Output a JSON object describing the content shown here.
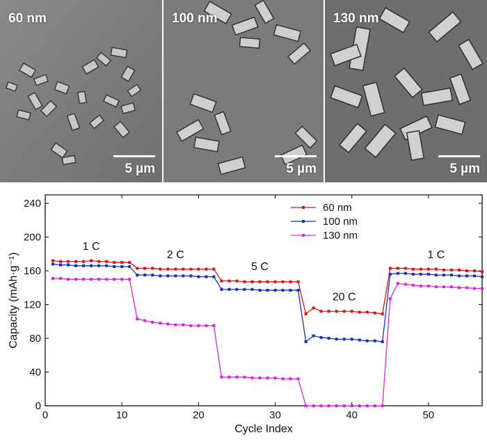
{
  "images": [
    {
      "label": "60 nm",
      "scale": "5 µm"
    },
    {
      "label": "100 nm",
      "scale": "5 µm"
    },
    {
      "label": "130 nm",
      "scale": "5 µm"
    }
  ],
  "chart_data": {
    "type": "line",
    "xlabel": "Cycle Index",
    "ylabel": "Capacity (mAh·g⁻¹)",
    "xlim": [
      0,
      57
    ],
    "ylim": [
      0,
      250
    ],
    "xticks": [
      0,
      10,
      20,
      30,
      40,
      50
    ],
    "yticks": [
      0,
      40,
      80,
      120,
      160,
      200,
      240
    ],
    "grid": false,
    "legend": "top-center",
    "x": [
      1,
      2,
      3,
      4,
      5,
      6,
      7,
      8,
      9,
      10,
      11,
      12,
      13,
      14,
      15,
      16,
      17,
      18,
      19,
      20,
      21,
      22,
      23,
      24,
      25,
      26,
      27,
      28,
      29,
      30,
      31,
      32,
      33,
      34,
      35,
      36,
      37,
      38,
      39,
      40,
      41,
      42,
      43,
      44,
      45,
      46,
      47,
      48,
      49,
      50,
      51,
      52,
      53,
      54,
      55,
      56,
      57
    ],
    "series": [
      {
        "name": "60 nm",
        "color": "#e01010",
        "values": [
          172,
          171,
          171,
          171,
          171,
          172,
          171,
          171,
          170,
          170,
          170,
          163,
          163,
          163,
          162,
          162,
          162,
          162,
          162,
          162,
          162,
          162,
          148,
          148,
          148,
          147,
          147,
          147,
          147,
          147,
          147,
          147,
          147,
          109,
          116,
          112,
          112,
          112,
          112,
          112,
          111,
          111,
          110,
          109,
          163,
          163,
          163,
          162,
          162,
          162,
          162,
          161,
          161,
          161,
          160,
          160,
          159
        ]
      },
      {
        "name": "100 nm",
        "color": "#1030c0",
        "values": [
          168,
          167,
          167,
          166,
          166,
          166,
          166,
          166,
          165,
          165,
          165,
          155,
          155,
          155,
          154,
          154,
          154,
          154,
          154,
          153,
          153,
          153,
          138,
          138,
          138,
          138,
          138,
          137,
          137,
          137,
          137,
          137,
          137,
          76,
          83,
          81,
          80,
          79,
          79,
          79,
          78,
          77,
          77,
          76,
          156,
          157,
          157,
          156,
          156,
          156,
          155,
          155,
          155,
          154,
          154,
          154,
          153
        ]
      },
      {
        "name": "130 nm",
        "color": "#e020e0",
        "values": [
          151,
          151,
          150,
          150,
          150,
          150,
          150,
          150,
          150,
          150,
          150,
          103,
          101,
          99,
          98,
          97,
          96,
          96,
          95,
          95,
          95,
          95,
          34,
          34,
          34,
          34,
          33,
          33,
          33,
          33,
          32,
          32,
          32,
          0,
          0,
          0,
          0,
          0,
          0,
          0,
          0,
          0,
          0,
          0,
          127,
          145,
          144,
          143,
          142,
          142,
          141,
          141,
          141,
          140,
          140,
          139,
          139
        ]
      }
    ],
    "annotations": [
      {
        "text": "1 C",
        "x": 6,
        "y": 185
      },
      {
        "text": "2 C",
        "x": 17,
        "y": 175
      },
      {
        "text": "5 C",
        "x": 28,
        "y": 161
      },
      {
        "text": "20 C",
        "x": 39,
        "y": 125
      },
      {
        "text": "1 C",
        "x": 51,
        "y": 175
      }
    ]
  }
}
